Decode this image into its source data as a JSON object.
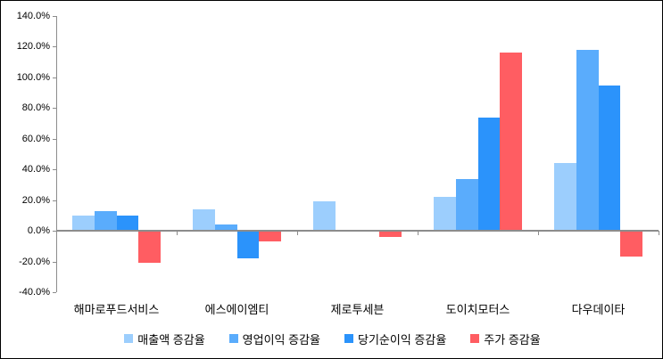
{
  "chart_data": {
    "type": "bar",
    "title": "",
    "xlabel": "",
    "ylabel": "",
    "categories": [
      "해마로푸드서비스",
      "에스에이엠티",
      "제로투세븐",
      "도이치모터스",
      "다우데이타"
    ],
    "series": [
      {
        "name": "매출액 증감율",
        "color": "#9CCEFD",
        "values": [
          10,
          14,
          19,
          22,
          44
        ]
      },
      {
        "name": "영업이익 증감율",
        "color": "#5AACFC",
        "values": [
          13,
          4,
          0,
          34,
          118
        ]
      },
      {
        "name": "당기순이익 증감율",
        "color": "#2B93FB",
        "values": [
          10,
          -18,
          0,
          74,
          95
        ]
      },
      {
        "name": "주가 증감율",
        "color": "#FF5D62",
        "values": [
          -21,
          -7,
          -4,
          116,
          -17
        ]
      }
    ],
    "value_unit": "%",
    "ylim": [
      -40,
      140
    ],
    "ytick_step": 20,
    "ytick_labels": [
      "140.0%",
      "120.0%",
      "100.0%",
      "80.0%",
      "60.0%",
      "40.0%",
      "20.0%",
      "0.0%",
      "-20.0%",
      "-40.0%"
    ],
    "grid": false,
    "legend_position": "bottom",
    "axis_color": "#8C8C8C",
    "tick_label_color": "#000000",
    "background": "#FFFFFF",
    "frame_border_color": "#000000"
  }
}
